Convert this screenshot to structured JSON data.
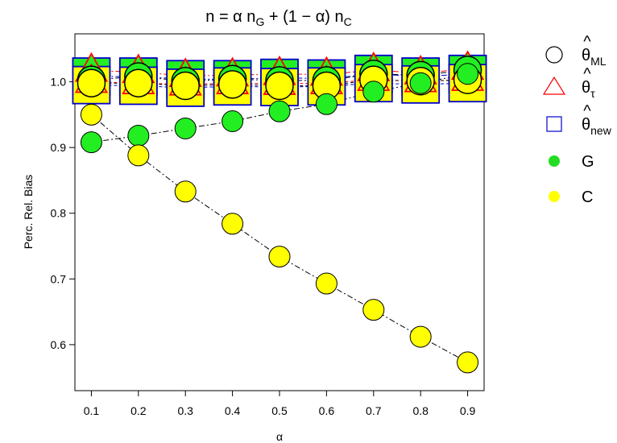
{
  "chart_data": {
    "type": "scatter",
    "title": {
      "prefix": "n = α n",
      "sub1": "G",
      "middle": " + (1 − α) n",
      "sub2": "C"
    },
    "xlabel": "α",
    "ylabel": "Perc. Rel. Bias",
    "x": [
      0.1,
      0.2,
      0.3,
      0.4,
      0.5,
      0.6,
      0.7,
      0.8,
      0.9
    ],
    "xticks": [
      "0.1",
      "0.2",
      "0.3",
      "0.4",
      "0.5",
      "0.6",
      "0.7",
      "0.8",
      "0.9"
    ],
    "yticks": [
      "0.6",
      "0.7",
      "0.8",
      "0.9",
      "1.0"
    ],
    "xlim": [
      0.065,
      0.935
    ],
    "ylim": [
      0.53,
      1.073
    ],
    "grid": false,
    "legend_position": "right",
    "series": [
      {
        "group": "G",
        "estimator": "ML",
        "marker": "circle",
        "values": [
          1.003,
          1.008,
          1.001,
          1.004,
          1.002,
          1.002,
          1.012,
          1.01,
          1.018
        ]
      },
      {
        "group": "G",
        "estimator": "tau",
        "marker": "triangle",
        "values": [
          1.017,
          1.015,
          1.009,
          1.01,
          1.012,
          1.011,
          1.018,
          1.013,
          1.02
        ]
      },
      {
        "group": "G",
        "estimator": "new",
        "marker": "square",
        "values": [
          1.008,
          1.008,
          1.004,
          1.004,
          1.006,
          1.005,
          1.012,
          1.008,
          1.012
        ]
      },
      {
        "group": "C",
        "estimator": "ML",
        "marker": "circle",
        "values": [
          0.998,
          0.998,
          0.994,
          0.996,
          0.994,
          0.994,
          1.003,
          1.001,
          1.003
        ]
      },
      {
        "group": "C",
        "estimator": "tau",
        "marker": "triangle",
        "values": [
          1.0,
          0.998,
          0.996,
          0.998,
          0.997,
          0.998,
          1.003,
          1.001,
          1.003
        ]
      },
      {
        "group": "C",
        "estimator": "new",
        "marker": "square",
        "values": [
          0.995,
          0.994,
          0.991,
          0.993,
          0.992,
          0.993,
          0.998,
          0.996,
          0.998
        ]
      },
      {
        "group": "G",
        "estimator": "reference",
        "marker": "circle",
        "values": [
          0.908,
          0.918,
          0.929,
          0.94,
          0.955,
          0.966,
          0.985,
          0.998,
          1.012
        ]
      },
      {
        "group": "C",
        "estimator": "reference",
        "marker": "circle",
        "values": [
          0.95,
          0.888,
          0.833,
          0.784,
          0.734,
          0.693,
          0.653,
          0.612,
          0.573
        ]
      }
    ],
    "legend": [
      {
        "base": "θ",
        "hat": "^",
        "sub": "ML",
        "symbol": "open-circle",
        "color": "#000000"
      },
      {
        "base": "θ",
        "hat": "^",
        "sub": "τ",
        "symbol": "open-triangle",
        "color": "#ff0000"
      },
      {
        "base": "θ",
        "hat": "^",
        "sub": "new",
        "symbol": "open-square",
        "color": "#0000cc"
      },
      {
        "base": "G",
        "symbol": "filled-circle",
        "color": "#22dd22"
      },
      {
        "base": "C",
        "symbol": "filled-circle",
        "color": "#ffff00"
      }
    ],
    "colors": {
      "G": "#22ee22",
      "C": "#ffff00",
      "ML": "#000000",
      "tau": "#ff0000",
      "new": "#0000cc"
    }
  }
}
